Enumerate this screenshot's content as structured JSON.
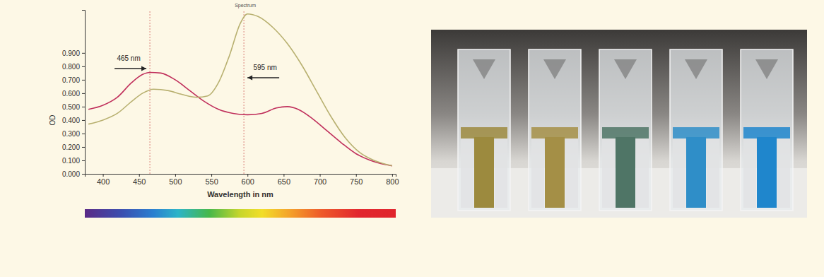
{
  "chart_data": {
    "type": "line",
    "title": "Spectrum",
    "x_label": "Wavelength in nm",
    "y_label": "OD",
    "xlim": [
      375,
      805
    ],
    "xticks": [
      400,
      450,
      500,
      550,
      600,
      650,
      700,
      750,
      800
    ],
    "ylim": [
      0,
      1.22
    ],
    "yticks": [
      {
        "value": 0,
        "label": "0.000"
      },
      {
        "value": 0.1,
        "label": "0.100"
      },
      {
        "value": 0.2,
        "label": "0.200"
      },
      {
        "value": 0.3,
        "label": "0.300"
      },
      {
        "value": 0.4,
        "label": "0.400"
      },
      {
        "value": 0.5,
        "label": "0.500"
      },
      {
        "value": 0.6,
        "label": "0.600"
      },
      {
        "value": 0.7,
        "label": "0.700"
      },
      {
        "value": 0.8,
        "label": "0.800"
      },
      {
        "value": 0.9,
        "label": "0.900"
      }
    ],
    "grid": false,
    "series": [
      {
        "color": "#c0305c",
        "x": [
          380,
          400,
          420,
          440,
          455,
          465,
          480,
          500,
          520,
          540,
          560,
          580,
          600,
          620,
          640,
          655,
          670,
          690,
          710,
          730,
          750,
          770,
          790,
          800
        ],
        "values": [
          0.48,
          0.51,
          0.57,
          0.68,
          0.74,
          0.755,
          0.75,
          0.7,
          0.62,
          0.54,
          0.48,
          0.45,
          0.44,
          0.45,
          0.49,
          0.5,
          0.48,
          0.41,
          0.32,
          0.23,
          0.15,
          0.1,
          0.07,
          0.06
        ]
      },
      {
        "color": "#b8b070",
        "x": [
          380,
          400,
          420,
          440,
          455,
          470,
          490,
          510,
          530,
          545,
          560,
          575,
          590,
          600,
          615,
          635,
          655,
          675,
          695,
          715,
          735,
          755,
          775,
          800
        ],
        "values": [
          0.37,
          0.4,
          0.45,
          0.54,
          0.6,
          0.63,
          0.62,
          0.59,
          0.57,
          0.58,
          0.68,
          0.88,
          1.12,
          1.19,
          1.17,
          1.09,
          0.97,
          0.81,
          0.62,
          0.43,
          0.27,
          0.16,
          0.1,
          0.06
        ]
      }
    ],
    "annotations": [
      {
        "text": "465 nm",
        "x": 465
      },
      {
        "text": "595 nm",
        "x": 595
      }
    ]
  }
}
